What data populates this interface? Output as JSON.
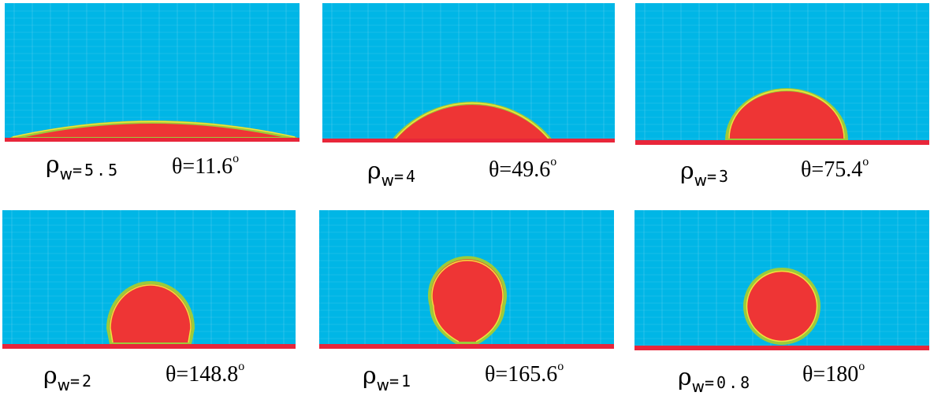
{
  "panels": [
    {
      "rho_symbol": "ρ",
      "rho_sub": "w",
      "equals": "=",
      "rho_value": "5.5",
      "theta_label": "θ=11.6",
      "degree": "o",
      "contact_angle_deg": 11.6
    },
    {
      "rho_symbol": "ρ",
      "rho_sub": "w",
      "equals": "=",
      "rho_value": "4",
      "theta_label": "θ=49.6",
      "degree": "o",
      "contact_angle_deg": 49.6
    },
    {
      "rho_symbol": "ρ",
      "rho_sub": "w",
      "equals": "=",
      "rho_value": "3",
      "theta_label": "θ=75.4",
      "degree": "o",
      "contact_angle_deg": 75.4
    },
    {
      "rho_symbol": "ρ",
      "rho_sub": "w",
      "equals": "=",
      "rho_value": "2",
      "theta_label": "θ=148.8",
      "degree": "o",
      "contact_angle_deg": 148.8
    },
    {
      "rho_symbol": "ρ",
      "rho_sub": "w",
      "equals": "=",
      "rho_value": "1",
      "theta_label": "θ=165.6",
      "degree": "o",
      "contact_angle_deg": 165.6
    },
    {
      "rho_symbol": "ρ",
      "rho_sub": "w",
      "equals": "=",
      "rho_value": "0.8",
      "theta_label": "θ=180",
      "degree": "o",
      "contact_angle_deg": 180
    }
  ],
  "colors": {
    "background_fluid": "#00B6E6",
    "droplet": "#EE3535",
    "interface_outer": "#9CCB3A",
    "interface_inner": "#F2E33A",
    "wall": "#E8263A",
    "grid_line": "#7FD7F0"
  }
}
